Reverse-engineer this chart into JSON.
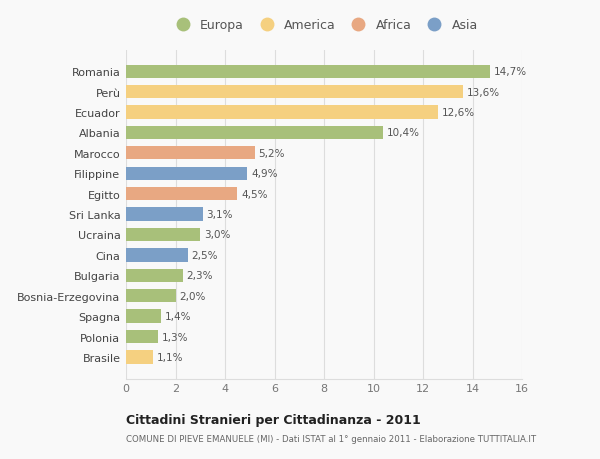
{
  "countries": [
    "Romania",
    "Perù",
    "Ecuador",
    "Albania",
    "Marocco",
    "Filippine",
    "Egitto",
    "Sri Lanka",
    "Ucraina",
    "Cina",
    "Bulgaria",
    "Bosnia-Erzegovina",
    "Spagna",
    "Polonia",
    "Brasile"
  ],
  "values": [
    14.7,
    13.6,
    12.6,
    10.4,
    5.2,
    4.9,
    4.5,
    3.1,
    3.0,
    2.5,
    2.3,
    2.0,
    1.4,
    1.3,
    1.1
  ],
  "labels": [
    "14,7%",
    "13,6%",
    "12,6%",
    "10,4%",
    "5,2%",
    "4,9%",
    "4,5%",
    "3,1%",
    "3,0%",
    "2,5%",
    "2,3%",
    "2,0%",
    "1,4%",
    "1,3%",
    "1,1%"
  ],
  "continents": [
    "Europa",
    "America",
    "America",
    "Europa",
    "Africa",
    "Asia",
    "Africa",
    "Asia",
    "Europa",
    "Asia",
    "Europa",
    "Europa",
    "Europa",
    "Europa",
    "America"
  ],
  "colors": {
    "Europa": "#a8c07a",
    "America": "#f5d080",
    "Africa": "#e8a882",
    "Asia": "#7b9fc7"
  },
  "legend_order": [
    "Europa",
    "America",
    "Africa",
    "Asia"
  ],
  "title1": "Cittadini Stranieri per Cittadinanza - 2011",
  "title2": "COMUNE DI PIEVE EMANUELE (MI) - Dati ISTAT al 1° gennaio 2011 - Elaborazione TUTTITALIA.IT",
  "xlim": [
    0,
    16
  ],
  "xticks": [
    0,
    2,
    4,
    6,
    8,
    10,
    12,
    14,
    16
  ],
  "background_color": "#f9f9f9",
  "grid_color": "#dddddd"
}
